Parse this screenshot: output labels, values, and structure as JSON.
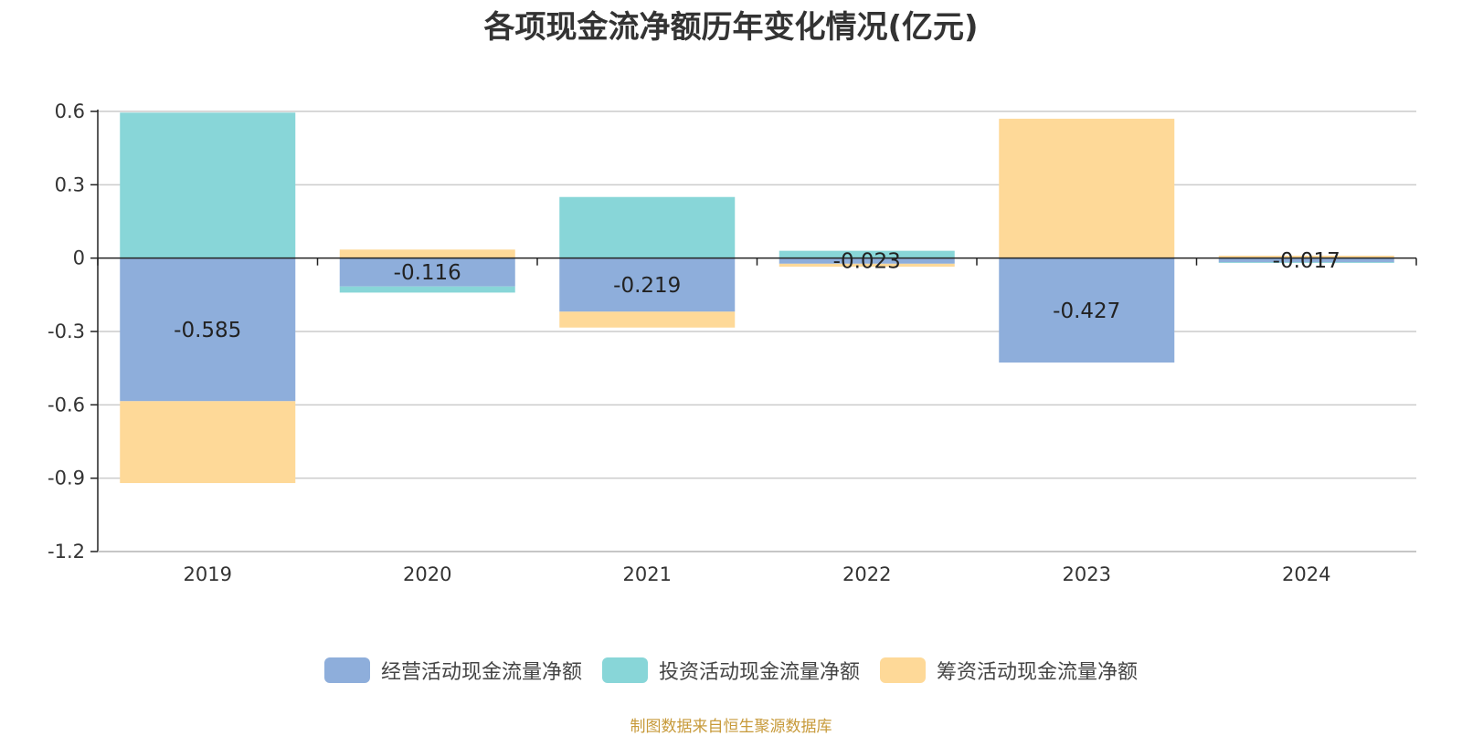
{
  "title": "各项现金流净额历年变化情况(亿元)",
  "source_note": "制图数据来自恒生聚源数据库",
  "colors": {
    "operating": "#8eaedb",
    "investing": "#88d6d8",
    "financing": "#fed998",
    "grid": "#cccccc",
    "axis": "#222222"
  },
  "chart_data": {
    "type": "bar",
    "stacked": true,
    "title": "各项现金流净额历年变化情况(亿元)",
    "categories": [
      "2019",
      "2020",
      "2021",
      "2022",
      "2023",
      "2024"
    ],
    "ylim": [
      -1.2,
      0.6
    ],
    "yticks": [
      0.6,
      0.3,
      0,
      -0.3,
      -0.6,
      -0.9,
      -1.2
    ],
    "ytick_labels": [
      "0.6",
      "0.3",
      "0",
      "-0.3",
      "-0.6",
      "-0.9",
      "-1.2"
    ],
    "grid": true,
    "legend_position": "bottom",
    "series": [
      {
        "name": "经营活动现金流量净额",
        "color": "#8eaedb",
        "values": [
          -0.585,
          -0.116,
          -0.219,
          -0.023,
          -0.427,
          -0.017
        ],
        "labels": [
          "-0.585",
          "-0.116",
          "-0.219",
          "-0.023",
          "-0.427",
          "-0.017"
        ]
      },
      {
        "name": "投资活动现金流量净额",
        "color": "#88d6d8",
        "values": [
          0.595,
          -0.025,
          0.25,
          0.03,
          0.0,
          -0.003
        ]
      },
      {
        "name": "筹资活动现金流量净额",
        "color": "#fed998",
        "values": [
          -0.335,
          0.035,
          -0.065,
          -0.012,
          0.57,
          0.01
        ]
      }
    ]
  }
}
